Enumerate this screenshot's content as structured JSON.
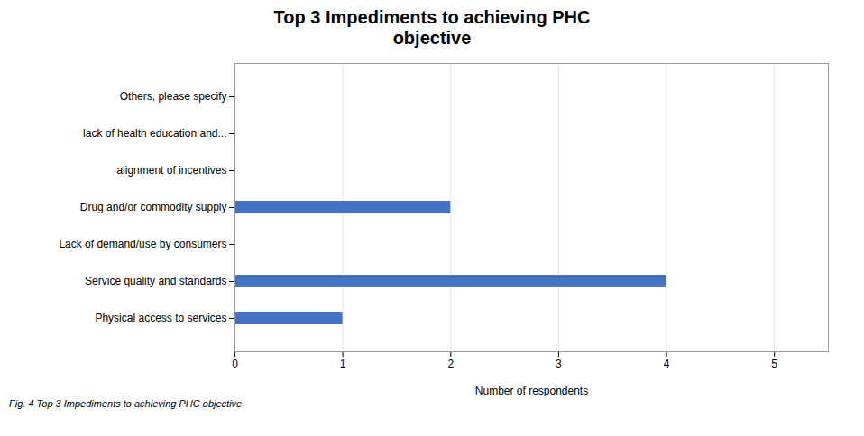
{
  "chart_data": {
    "type": "bar",
    "orientation": "horizontal",
    "title": "Top 3 Impediments to achieving PHC\nobjective",
    "caption": "Fig. 4 Top 3 Impediments to achieving PHC objective",
    "categories": [
      "Physical access to services",
      "Service quality and standards",
      "Lack of demand/use by consumers",
      "Drug and/or commodity supply",
      "alignment of incentives",
      "lack of health education and...",
      "Others, please specify"
    ],
    "values": [
      1,
      4,
      0,
      2,
      0,
      0,
      0
    ],
    "color": "#4472C4",
    "xlabel": "Number of respondents",
    "xlim": [
      0,
      5.5
    ],
    "xticks": [
      0,
      1,
      2,
      3,
      4,
      5
    ],
    "grid": true
  }
}
